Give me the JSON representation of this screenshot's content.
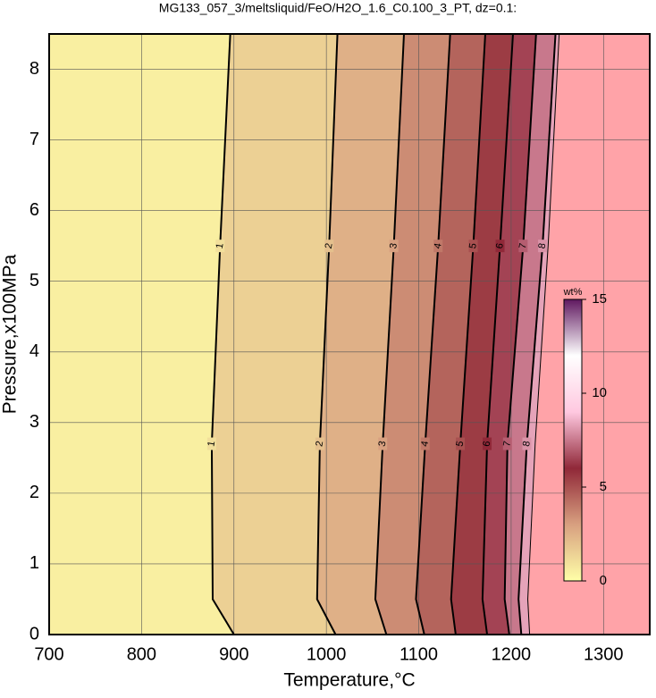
{
  "chart_data": {
    "type": "contour",
    "title": "MG133_057_3/meltsliquid/FeO/H2O_1.6_C0.100_3_PT, dz=0.1:",
    "x_label": "Temperature,°C",
    "y_label": "Pressure,x100MPa",
    "xlim": [
      700,
      1350
    ],
    "ylim": [
      0,
      8.5
    ],
    "xticks": [
      700,
      800,
      900,
      1000,
      1100,
      1200,
      1300
    ],
    "yticks": [
      0,
      1,
      2,
      3,
      4,
      5,
      6,
      7,
      8
    ],
    "grid": true,
    "pressures": [
      0,
      0.5,
      2.7,
      5.5,
      8.5
    ],
    "contours": [
      {
        "level": 1,
        "temperatures": [
          900,
          877,
          876,
          885,
          896
        ]
      },
      {
        "level": 2,
        "temperatures": [
          1010,
          990,
          993,
          1003,
          1012
        ]
      },
      {
        "level": 3,
        "temperatures": [
          1065,
          1053,
          1061,
          1073,
          1084
        ]
      },
      {
        "level": 4,
        "temperatures": [
          1106,
          1097,
          1107,
          1121,
          1134
        ]
      },
      {
        "level": 5,
        "temperatures": [
          1140,
          1135,
          1145,
          1159,
          1172
        ]
      },
      {
        "level": 6,
        "temperatures": [
          1174,
          1169,
          1174,
          1188,
          1202
        ]
      },
      {
        "level": 7,
        "temperatures": [
          1198,
          1193,
          1196,
          1213,
          1227
        ]
      },
      {
        "level": 8,
        "temperatures": [
          1211,
          1208,
          1217,
          1234,
          1248
        ]
      }
    ],
    "liquidus": {
      "temperatures": [
        1220,
        1218,
        1226,
        1240,
        1252
      ],
      "color": "#ffa3a8"
    },
    "colorbar": {
      "label": "wt%",
      "lim": [
        0,
        15
      ],
      "ticks": [
        0,
        5,
        10,
        15
      ],
      "colors": [
        "#ffffa8",
        "#d8a080",
        "#902838",
        "#ffc8e0",
        "#ffffff",
        "#601860"
      ]
    }
  }
}
